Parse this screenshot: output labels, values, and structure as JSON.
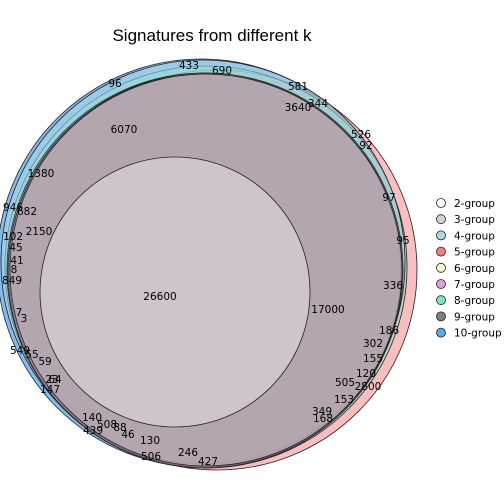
{
  "chart_data": {
    "type": "venn",
    "title": "Signatures from different k",
    "series": [
      {
        "name": "2-group",
        "color": "#ffffff"
      },
      {
        "name": "3-group",
        "color": "#d3d3d3"
      },
      {
        "name": "4-group",
        "color": "#add8e6"
      },
      {
        "name": "5-group",
        "color": "#f08080"
      },
      {
        "name": "6-group",
        "color": "#fffacd"
      },
      {
        "name": "7-group",
        "color": "#dda0dd"
      },
      {
        "name": "8-group",
        "color": "#7fe5c7"
      },
      {
        "name": "9-group",
        "color": "#808080"
      },
      {
        "name": "10-group",
        "color": "#5aa6e6"
      }
    ],
    "legend_position": "right",
    "region_labels": [
      "433",
      "690",
      "96",
      "581",
      "344",
      "3640",
      "526",
      "92",
      "6070",
      "1380",
      "97",
      "95",
      "946",
      "682",
      "102",
      "2150",
      "45",
      "41",
      "8",
      "849",
      "26600",
      "17000",
      "336",
      "7",
      "3",
      "186",
      "302",
      "155",
      "549",
      "55",
      "59",
      "120",
      "64",
      "505",
      "147",
      "2800",
      "153",
      "23",
      "349",
      "168",
      "140",
      "508",
      "88",
      "439",
      "46",
      "130",
      "246",
      "427",
      "506"
    ]
  }
}
